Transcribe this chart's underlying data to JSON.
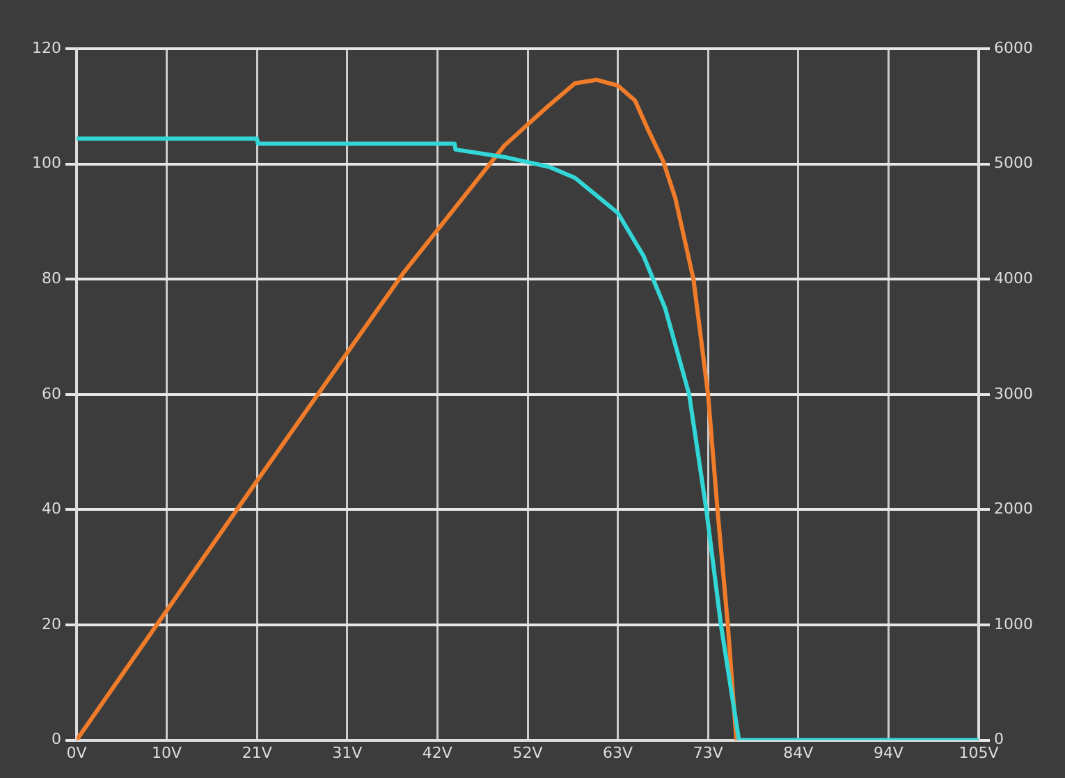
{
  "chart_data": {
    "type": "line",
    "xlim": [
      0,
      105
    ],
    "xticks": [
      {
        "value": 0,
        "label": "0V"
      },
      {
        "value": 10.5,
        "label": "10V"
      },
      {
        "value": 21,
        "label": "21V"
      },
      {
        "value": 31.5,
        "label": "31V"
      },
      {
        "value": 42,
        "label": "42V"
      },
      {
        "value": 52.5,
        "label": "52V"
      },
      {
        "value": 63,
        "label": "63V"
      },
      {
        "value": 73.5,
        "label": "73V"
      },
      {
        "value": 84,
        "label": "84V"
      },
      {
        "value": 94.5,
        "label": "94V"
      },
      {
        "value": 105,
        "label": "105V"
      }
    ],
    "ylim": [
      0,
      120
    ],
    "yticks": [
      0,
      20,
      40,
      60,
      80,
      100,
      120
    ],
    "y2lim": [
      0,
      6000
    ],
    "y2ticks": [
      0,
      1000,
      2000,
      3000,
      4000,
      5000,
      6000
    ],
    "grid": true,
    "legend": false,
    "marker": "none",
    "line_style": "solid",
    "series": [
      {
        "color": "#33d6d6",
        "x": [
          0,
          21,
          21.1,
          44,
          44.1,
          49.8,
          55,
          58,
          63,
          66,
          68.5,
          71.3,
          73.3,
          75,
          77.1,
          105
        ],
        "values": [
          104.4,
          104.4,
          103.5,
          103.5,
          102.5,
          101.2,
          99.5,
          97.6,
          91.5,
          84,
          75,
          60,
          40,
          20,
          0,
          0
        ]
      },
      {
        "color": "#f07c2a",
        "axis": "y2",
        "x": [
          0,
          8.3,
          21,
          38,
          49.8,
          54.7,
          58,
          60.5,
          63,
          65,
          66.5,
          68.3,
          69.7,
          71.8,
          73.5,
          74.6,
          75.8,
          76.8
        ],
        "values": [
          0,
          890,
          2250,
          4050,
          5160,
          5490,
          5700,
          5730,
          5680,
          5550,
          5300,
          5020,
          4700,
          4000,
          3000,
          2000,
          1000,
          0
        ]
      }
    ]
  }
}
